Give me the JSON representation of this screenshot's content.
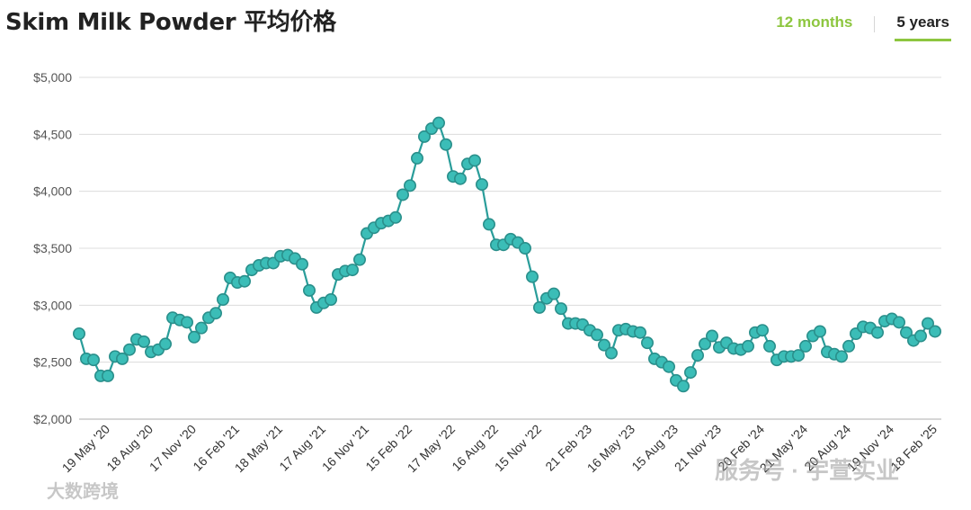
{
  "header": {
    "title": "Skim Milk Powder 平均价格",
    "tabs": [
      {
        "label": "12 months",
        "active": false
      },
      {
        "label": "5 years",
        "active": true
      }
    ]
  },
  "colors": {
    "accent": "#8dc63f",
    "series_line": "#2a9d9a",
    "marker_fill": "#3bbdb7",
    "marker_stroke": "#2a8f8b"
  },
  "watermarks": [
    "大数跨境",
    "服务号 · 宇萱实业"
  ],
  "chart_data": {
    "type": "line",
    "title": "Skim Milk Powder 平均价格",
    "xlabel": "",
    "ylabel": "",
    "ylim": [
      2000,
      5000
    ],
    "yticks": [
      2000,
      2500,
      3000,
      3500,
      4000,
      4500,
      5000
    ],
    "ytick_labels": [
      "$2,000",
      "$2,500",
      "$3,000",
      "$3,500",
      "$4,000",
      "$4,500",
      "$5,000"
    ],
    "grid": true,
    "xtick_labels": [
      {
        "label": "19 May '20",
        "index": 4
      },
      {
        "label": "18 Aug '20",
        "index": 10
      },
      {
        "label": "17 Nov '20",
        "index": 16
      },
      {
        "label": "16 Feb '21",
        "index": 22
      },
      {
        "label": "18 May '21",
        "index": 28
      },
      {
        "label": "17 Aug '21",
        "index": 34
      },
      {
        "label": "16 Nov '21",
        "index": 40
      },
      {
        "label": "15 Feb '22",
        "index": 46
      },
      {
        "label": "17 May '22",
        "index": 52
      },
      {
        "label": "16 Aug '22",
        "index": 58
      },
      {
        "label": "15 Nov '22",
        "index": 64
      },
      {
        "label": "21 Feb '23",
        "index": 71
      },
      {
        "label": "16 May '23",
        "index": 77
      },
      {
        "label": "15 Aug '23",
        "index": 83
      },
      {
        "label": "21 Nov '23",
        "index": 89
      },
      {
        "label": "20 Feb '24",
        "index": 95
      },
      {
        "label": "21 May '24",
        "index": 101
      },
      {
        "label": "20 Aug '24",
        "index": 107
      },
      {
        "label": "19 Nov '24",
        "index": 113
      },
      {
        "label": "18 Feb '25",
        "index": 119
      }
    ],
    "series": [
      {
        "values": [
          2750,
          2530,
          2520,
          2380,
          2380,
          2550,
          2530,
          2610,
          2700,
          2680,
          2590,
          2610,
          2660,
          2890,
          2870,
          2850,
          2720,
          2800,
          2890,
          2930,
          3050,
          3240,
          3200,
          3210,
          3310,
          3350,
          3370,
          3370,
          3430,
          3440,
          3410,
          3360,
          3130,
          2980,
          3020,
          3050,
          3270,
          3300,
          3310,
          3400,
          3630,
          3680,
          3720,
          3740,
          3770,
          3970,
          4050,
          4290,
          4480,
          4550,
          4600,
          4410,
          4130,
          4110,
          4240,
          4270,
          4060,
          3710,
          3530,
          3530,
          3580,
          3550,
          3500,
          3250,
          2980,
          3060,
          3100,
          2970,
          2840,
          2840,
          2830,
          2780,
          2740,
          2650,
          2580,
          2780,
          2790,
          2770,
          2760,
          2670,
          2530,
          2500,
          2460,
          2340,
          2290,
          2410,
          2560,
          2660,
          2730,
          2630,
          2670,
          2620,
          2610,
          2640,
          2760,
          2780,
          2640,
          2520,
          2550,
          2550,
          2560,
          2640,
          2730,
          2770,
          2590,
          2570,
          2550,
          2640,
          2750,
          2810,
          2800,
          2760,
          2860,
          2880,
          2850,
          2760,
          2690,
          2730,
          2840,
          2770
        ]
      }
    ]
  }
}
